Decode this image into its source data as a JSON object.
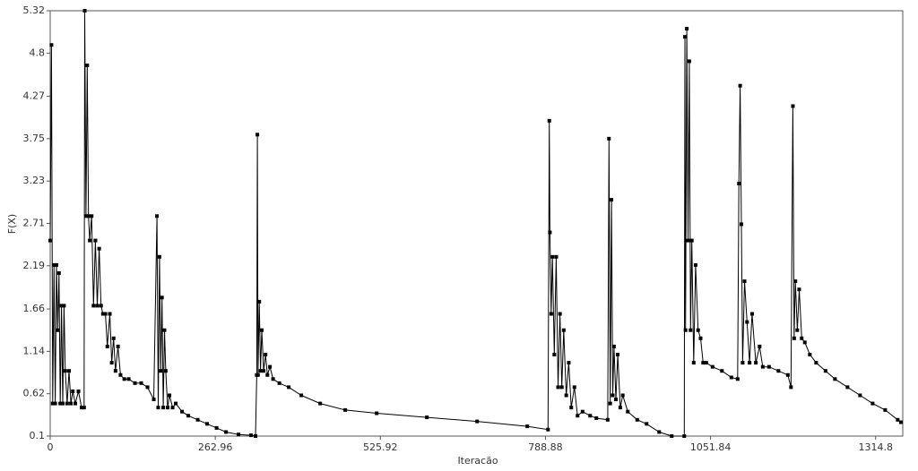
{
  "chart_data": {
    "type": "line",
    "x_label": "Iteracão",
    "y_label": "F(X)",
    "color": "#000000",
    "markers": true,
    "xlim": [
      0,
      1358
    ],
    "ylim": [
      0.1,
      5.32
    ],
    "xticks": [
      0,
      262.96,
      525.92,
      788.88,
      1051.84,
      1314.8
    ],
    "yticks": [
      0.1,
      0.62,
      1.14,
      1.66,
      2.19,
      2.71,
      3.23,
      3.75,
      4.27,
      4.8,
      5.32
    ],
    "x": [
      0,
      2,
      4,
      6,
      8,
      10,
      12,
      14,
      16,
      18,
      20,
      22,
      24,
      27,
      30,
      33,
      36,
      40,
      45,
      50,
      54,
      55,
      57,
      59,
      61,
      63,
      66,
      69,
      72,
      75,
      78,
      81,
      84,
      88,
      91,
      95,
      98,
      101,
      104,
      108,
      112,
      118,
      125,
      135,
      145,
      155,
      165,
      170,
      172,
      174,
      176,
      178,
      180,
      182,
      184,
      187,
      190,
      195,
      200,
      210,
      220,
      235,
      250,
      265,
      280,
      300,
      320,
      327,
      329,
      330,
      331,
      333,
      335,
      337,
      340,
      343,
      346,
      350,
      355,
      365,
      380,
      400,
      430,
      470,
      520,
      600,
      680,
      760,
      793,
      795,
      796,
      798,
      800,
      803,
      806,
      809,
      812,
      815,
      818,
      822,
      826,
      830,
      835,
      840,
      848,
      860,
      870,
      888,
      890,
      892,
      894,
      896,
      898,
      901,
      904,
      908,
      912,
      920,
      935,
      950,
      970,
      990,
      1010,
      1011,
      1012,
      1014,
      1016,
      1018,
      1020,
      1022,
      1025,
      1028,
      1032,
      1036,
      1040,
      1045,
      1055,
      1070,
      1085,
      1095,
      1097,
      1099,
      1101,
      1103,
      1106,
      1110,
      1114,
      1118,
      1124,
      1130,
      1135,
      1145,
      1160,
      1175,
      1180,
      1183,
      1185,
      1187,
      1190,
      1193,
      1197,
      1202,
      1210,
      1220,
      1235,
      1250,
      1270,
      1290,
      1310,
      1330,
      1350,
      1355
    ],
    "values": [
      2.5,
      4.9,
      0.5,
      2.2,
      0.5,
      2.2,
      1.4,
      2.1,
      0.5,
      1.7,
      0.5,
      1.7,
      0.9,
      0.5,
      0.9,
      0.5,
      0.65,
      0.5,
      0.65,
      0.45,
      0.45,
      5.32,
      2.8,
      4.65,
      2.8,
      2.5,
      2.8,
      1.7,
      2.5,
      1.7,
      2.4,
      1.7,
      1.6,
      1.6,
      1.2,
      1.6,
      1.0,
      1.3,
      0.9,
      1.2,
      0.85,
      0.8,
      0.8,
      0.75,
      0.75,
      0.7,
      0.55,
      2.8,
      0.45,
      2.3,
      0.9,
      1.8,
      0.45,
      1.4,
      0.9,
      0.45,
      0.6,
      0.45,
      0.5,
      0.4,
      0.35,
      0.3,
      0.25,
      0.2,
      0.15,
      0.12,
      0.11,
      0.1,
      0.85,
      3.8,
      0.85,
      1.75,
      0.9,
      1.4,
      0.9,
      1.1,
      0.85,
      0.95,
      0.8,
      0.75,
      0.7,
      0.6,
      0.5,
      0.42,
      0.38,
      0.33,
      0.28,
      0.22,
      0.18,
      3.97,
      2.6,
      1.6,
      2.3,
      1.1,
      2.3,
      0.7,
      1.6,
      0.7,
      1.4,
      0.6,
      1.0,
      0.45,
      0.7,
      0.35,
      0.4,
      0.35,
      0.32,
      0.3,
      3.75,
      0.5,
      3.0,
      0.6,
      1.2,
      0.55,
      1.1,
      0.45,
      0.6,
      0.4,
      0.3,
      0.25,
      0.15,
      0.1,
      0.1,
      5.0,
      1.4,
      5.1,
      2.5,
      4.7,
      1.4,
      2.5,
      1.0,
      2.2,
      1.4,
      1.3,
      1.0,
      1.0,
      0.95,
      0.9,
      0.82,
      0.8,
      3.2,
      4.4,
      2.7,
      1.0,
      2.0,
      1.5,
      1.0,
      1.6,
      1.0,
      1.2,
      0.95,
      0.95,
      0.9,
      0.85,
      0.7,
      4.15,
      1.3,
      2.0,
      1.4,
      1.9,
      1.3,
      1.25,
      1.1,
      1.0,
      0.9,
      0.8,
      0.7,
      0.6,
      0.5,
      0.42,
      0.3,
      0.27
    ]
  }
}
